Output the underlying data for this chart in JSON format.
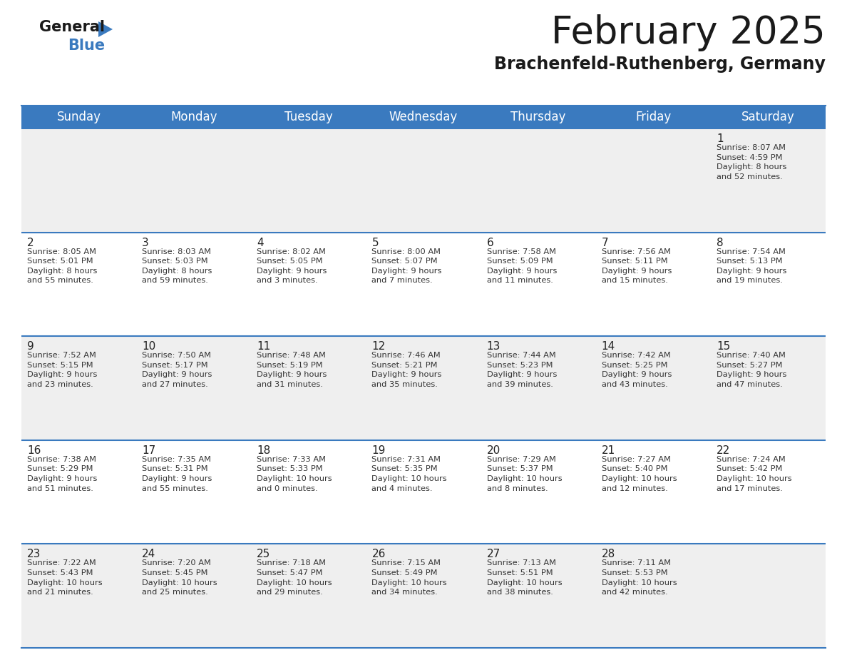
{
  "title": "February 2025",
  "subtitle": "Brachenfeld-Ruthenberg, Germany",
  "header_color": "#3a7abf",
  "header_text_color": "#ffffff",
  "row_bg_colors": [
    "#efefef",
    "#ffffff",
    "#efefef",
    "#ffffff",
    "#efefef"
  ],
  "border_color": "#3a7abf",
  "text_color": "#333333",
  "day_num_color": "#222222",
  "days_of_week": [
    "Sunday",
    "Monday",
    "Tuesday",
    "Wednesday",
    "Thursday",
    "Friday",
    "Saturday"
  ],
  "title_fontsize": 38,
  "subtitle_fontsize": 17,
  "header_fontsize": 12,
  "day_num_fontsize": 11,
  "info_fontsize": 8.2,
  "calendar_data": [
    [
      null,
      null,
      null,
      null,
      null,
      null,
      {
        "day": 1,
        "sunrise": "8:07 AM",
        "sunset": "4:59 PM",
        "daylight": "8 hours and 52 minutes"
      }
    ],
    [
      {
        "day": 2,
        "sunrise": "8:05 AM",
        "sunset": "5:01 PM",
        "daylight": "8 hours and 55 minutes"
      },
      {
        "day": 3,
        "sunrise": "8:03 AM",
        "sunset": "5:03 PM",
        "daylight": "8 hours and 59 minutes"
      },
      {
        "day": 4,
        "sunrise": "8:02 AM",
        "sunset": "5:05 PM",
        "daylight": "9 hours and 3 minutes"
      },
      {
        "day": 5,
        "sunrise": "8:00 AM",
        "sunset": "5:07 PM",
        "daylight": "9 hours and 7 minutes"
      },
      {
        "day": 6,
        "sunrise": "7:58 AM",
        "sunset": "5:09 PM",
        "daylight": "9 hours and 11 minutes"
      },
      {
        "day": 7,
        "sunrise": "7:56 AM",
        "sunset": "5:11 PM",
        "daylight": "9 hours and 15 minutes"
      },
      {
        "day": 8,
        "sunrise": "7:54 AM",
        "sunset": "5:13 PM",
        "daylight": "9 hours and 19 minutes"
      }
    ],
    [
      {
        "day": 9,
        "sunrise": "7:52 AM",
        "sunset": "5:15 PM",
        "daylight": "9 hours and 23 minutes"
      },
      {
        "day": 10,
        "sunrise": "7:50 AM",
        "sunset": "5:17 PM",
        "daylight": "9 hours and 27 minutes"
      },
      {
        "day": 11,
        "sunrise": "7:48 AM",
        "sunset": "5:19 PM",
        "daylight": "9 hours and 31 minutes"
      },
      {
        "day": 12,
        "sunrise": "7:46 AM",
        "sunset": "5:21 PM",
        "daylight": "9 hours and 35 minutes"
      },
      {
        "day": 13,
        "sunrise": "7:44 AM",
        "sunset": "5:23 PM",
        "daylight": "9 hours and 39 minutes"
      },
      {
        "day": 14,
        "sunrise": "7:42 AM",
        "sunset": "5:25 PM",
        "daylight": "9 hours and 43 minutes"
      },
      {
        "day": 15,
        "sunrise": "7:40 AM",
        "sunset": "5:27 PM",
        "daylight": "9 hours and 47 minutes"
      }
    ],
    [
      {
        "day": 16,
        "sunrise": "7:38 AM",
        "sunset": "5:29 PM",
        "daylight": "9 hours and 51 minutes"
      },
      {
        "day": 17,
        "sunrise": "7:35 AM",
        "sunset": "5:31 PM",
        "daylight": "9 hours and 55 minutes"
      },
      {
        "day": 18,
        "sunrise": "7:33 AM",
        "sunset": "5:33 PM",
        "daylight": "10 hours and 0 minutes"
      },
      {
        "day": 19,
        "sunrise": "7:31 AM",
        "sunset": "5:35 PM",
        "daylight": "10 hours and 4 minutes"
      },
      {
        "day": 20,
        "sunrise": "7:29 AM",
        "sunset": "5:37 PM",
        "daylight": "10 hours and 8 minutes"
      },
      {
        "day": 21,
        "sunrise": "7:27 AM",
        "sunset": "5:40 PM",
        "daylight": "10 hours and 12 minutes"
      },
      {
        "day": 22,
        "sunrise": "7:24 AM",
        "sunset": "5:42 PM",
        "daylight": "10 hours and 17 minutes"
      }
    ],
    [
      {
        "day": 23,
        "sunrise": "7:22 AM",
        "sunset": "5:43 PM",
        "daylight": "10 hours and 21 minutes"
      },
      {
        "day": 24,
        "sunrise": "7:20 AM",
        "sunset": "5:45 PM",
        "daylight": "10 hours and 25 minutes"
      },
      {
        "day": 25,
        "sunrise": "7:18 AM",
        "sunset": "5:47 PM",
        "daylight": "10 hours and 29 minutes"
      },
      {
        "day": 26,
        "sunrise": "7:15 AM",
        "sunset": "5:49 PM",
        "daylight": "10 hours and 34 minutes"
      },
      {
        "day": 27,
        "sunrise": "7:13 AM",
        "sunset": "5:51 PM",
        "daylight": "10 hours and 38 minutes"
      },
      {
        "day": 28,
        "sunrise": "7:11 AM",
        "sunset": "5:53 PM",
        "daylight": "10 hours and 42 minutes"
      },
      null
    ]
  ]
}
